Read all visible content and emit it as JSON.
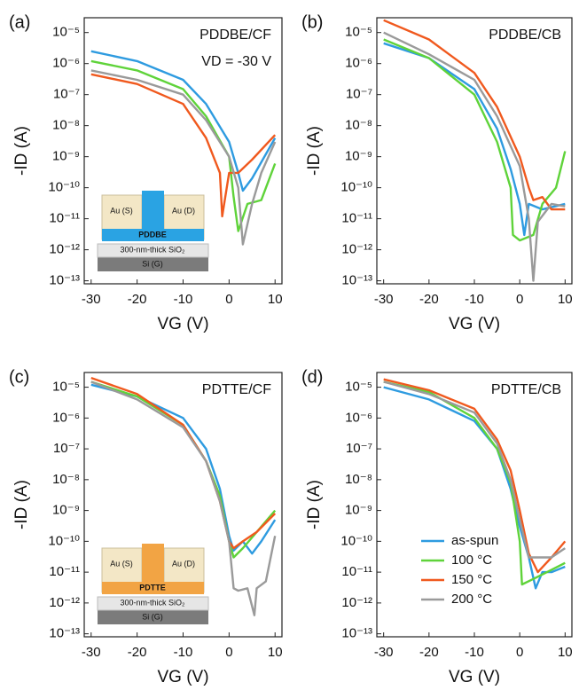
{
  "chart_data": [
    {
      "type": "line",
      "panel": "(a)",
      "title": "PDDBE/CF",
      "annotation": "VD = -30 V",
      "xlabel": "VG (V)",
      "ylabel": "-ID (A)",
      "ylog": true,
      "xlim": [
        -31.5,
        11.5
      ],
      "ylim": [
        8e-14,
        3e-05
      ],
      "xticks": [
        -30,
        -20,
        -10,
        0,
        10
      ],
      "yticks": [
        {
          "value": 1e-13,
          "label": "10⁻¹³"
        },
        {
          "value": 1e-12,
          "label": "10⁻¹²"
        },
        {
          "value": 1e-11,
          "label": "10⁻¹¹"
        },
        {
          "value": 1e-10,
          "label": "10⁻¹⁰"
        },
        {
          "value": 1e-09,
          "label": "10⁻⁹"
        },
        {
          "value": 1e-08,
          "label": "10⁻⁸"
        },
        {
          "value": 1e-07,
          "label": "10⁻⁷"
        },
        {
          "value": 1e-06,
          "label": "10⁻⁶"
        },
        {
          "value": 1e-05,
          "label": "10⁻⁵"
        }
      ],
      "inset": {
        "channel": "PDDBE",
        "channel_color": "#2aa3e3",
        "source": "Au (S)",
        "drain": "Au (D)",
        "dielectric": "300-nm-thick SiO₂",
        "gate": "Si (G)"
      },
      "series": [
        {
          "color": "#2e9be0",
          "x": [
            -30,
            -20,
            -10,
            -5,
            0,
            2,
            3,
            5,
            10
          ],
          "values": [
            2.5e-06,
            1.2e-06,
            3e-07,
            5e-08,
            3e-09,
            3e-10,
            8e-11,
            2e-10,
            4e-09
          ]
        },
        {
          "color": "#5fd33a",
          "x": [
            -30,
            -20,
            -10,
            -5,
            0,
            1,
            2,
            4,
            7,
            10
          ],
          "values": [
            1.2e-06,
            6e-07,
            1.5e-07,
            2e-08,
            1e-09,
            5e-11,
            4e-12,
            3e-11,
            4e-11,
            6e-10
          ]
        },
        {
          "color": "#f0591e",
          "x": [
            -30,
            -20,
            -10,
            -5,
            -2,
            -1.5,
            0,
            2,
            5,
            10
          ],
          "values": [
            4.5e-07,
            2.2e-07,
            5e-08,
            4e-09,
            3e-10,
            1.2e-11,
            3e-10,
            3e-10,
            8e-10,
            5e-09
          ]
        },
        {
          "color": "#9a9a9a",
          "x": [
            -30,
            -20,
            -10,
            -5,
            0,
            2,
            3,
            5,
            7,
            10
          ],
          "values": [
            6e-07,
            3e-07,
            1e-07,
            1.5e-08,
            1e-09,
            1e-10,
            1.5e-12,
            3e-11,
            3e-10,
            3e-09
          ]
        }
      ]
    },
    {
      "type": "line",
      "panel": "(b)",
      "title": "PDDBE/CB",
      "xlabel": "VG (V)",
      "ylabel": "-ID (A)",
      "ylog": true,
      "xlim": [
        -31.5,
        11.5
      ],
      "ylim": [
        8e-14,
        3e-05
      ],
      "xticks": [
        -30,
        -20,
        -10,
        0,
        10
      ],
      "yticks": [
        {
          "value": 1e-13,
          "label": "10⁻¹³"
        },
        {
          "value": 1e-12,
          "label": "10⁻¹²"
        },
        {
          "value": 1e-11,
          "label": "10⁻¹¹"
        },
        {
          "value": 1e-10,
          "label": "10⁻¹⁰"
        },
        {
          "value": 1e-09,
          "label": "10⁻⁹"
        },
        {
          "value": 1e-08,
          "label": "10⁻⁸"
        },
        {
          "value": 1e-07,
          "label": "10⁻⁷"
        },
        {
          "value": 1e-06,
          "label": "10⁻⁶"
        },
        {
          "value": 1e-05,
          "label": "10⁻⁵"
        }
      ],
      "series": [
        {
          "color": "#2e9be0",
          "x": [
            -30,
            -20,
            -10,
            -5,
            -2,
            0,
            1,
            2,
            5,
            10
          ],
          "values": [
            4.5e-06,
            1.5e-06,
            1.5e-07,
            8e-09,
            4e-10,
            3e-11,
            3e-12,
            3e-11,
            2e-11,
            3e-11
          ]
        },
        {
          "color": "#5fd33a",
          "x": [
            -30,
            -20,
            -10,
            -5,
            -2,
            -1.5,
            0,
            3,
            5,
            8,
            10
          ],
          "values": [
            6e-06,
            1.5e-06,
            1e-07,
            3e-09,
            1e-10,
            3e-12,
            2e-12,
            3e-12,
            3e-11,
            1e-10,
            1.5e-09
          ]
        },
        {
          "color": "#f0591e",
          "x": [
            -30,
            -20,
            -10,
            -5,
            0,
            2,
            3,
            5,
            7,
            10
          ],
          "values": [
            2.5e-05,
            6e-06,
            5e-07,
            4e-08,
            1e-09,
            1e-10,
            4e-11,
            5e-11,
            2e-11,
            2e-11
          ]
        },
        {
          "color": "#9a9a9a",
          "x": [
            -30,
            -20,
            -10,
            -5,
            0,
            2,
            3,
            4,
            7,
            10
          ],
          "values": [
            1e-05,
            2e-06,
            3e-07,
            2e-08,
            5e-10,
            1e-11,
            1e-13,
            8e-12,
            3e-11,
            2.5e-11
          ]
        }
      ]
    },
    {
      "type": "line",
      "panel": "(c)",
      "title": "PDTTE/CF",
      "xlabel": "VG (V)",
      "ylabel": "-ID (A)",
      "ylog": true,
      "xlim": [
        -31.5,
        11.5
      ],
      "ylim": [
        8e-14,
        3e-05
      ],
      "xticks": [
        -30,
        -20,
        -10,
        0,
        10
      ],
      "yticks": [
        {
          "value": 1e-13,
          "label": "10⁻¹³"
        },
        {
          "value": 1e-12,
          "label": "10⁻¹²"
        },
        {
          "value": 1e-11,
          "label": "10⁻¹¹"
        },
        {
          "value": 1e-10,
          "label": "10⁻¹⁰"
        },
        {
          "value": 1e-09,
          "label": "10⁻⁹"
        },
        {
          "value": 1e-08,
          "label": "10⁻⁸"
        },
        {
          "value": 1e-07,
          "label": "10⁻⁷"
        },
        {
          "value": 1e-06,
          "label": "10⁻⁶"
        },
        {
          "value": 1e-05,
          "label": "10⁻⁵"
        }
      ],
      "inset": {
        "channel": "PDTTE",
        "channel_color": "#f2a444",
        "source": "Au (S)",
        "drain": "Au (D)",
        "dielectric": "300-nm-thick SiO₂",
        "gate": "Si (G)"
      },
      "series": [
        {
          "color": "#2e9be0",
          "x": [
            -30,
            -20,
            -10,
            -5,
            -2,
            0,
            1,
            3,
            5,
            7,
            10
          ],
          "values": [
            1.2e-05,
            5e-06,
            1e-06,
            1e-07,
            5e-09,
            1.5e-10,
            5e-11,
            1e-10,
            4e-11,
            1e-10,
            5e-10
          ]
        },
        {
          "color": "#5fd33a",
          "x": [
            -30,
            -20,
            -10,
            -5,
            -2,
            0,
            1,
            3,
            6,
            10
          ],
          "values": [
            1.5e-05,
            5e-06,
            6e-07,
            4e-08,
            3e-09,
            1e-10,
            3e-11,
            6e-11,
            2e-10,
            1e-09
          ]
        },
        {
          "color": "#f0591e",
          "x": [
            -30,
            -20,
            -10,
            -5,
            -2,
            0,
            1,
            3,
            6,
            10
          ],
          "values": [
            2e-05,
            6e-06,
            6e-07,
            4e-08,
            2e-09,
            1e-10,
            6e-11,
            1e-10,
            2e-10,
            8e-10
          ]
        },
        {
          "color": "#9a9a9a",
          "x": [
            -30,
            -20,
            -10,
            -5,
            -2,
            0,
            1,
            2,
            4,
            5.5,
            6,
            8,
            10
          ],
          "values": [
            1.5e-05,
            4e-06,
            5e-07,
            4e-08,
            2e-09,
            1e-10,
            3e-12,
            2.5e-12,
            3e-12,
            4e-13,
            3e-12,
            5e-12,
            1.5e-10
          ]
        }
      ]
    },
    {
      "type": "line",
      "panel": "(d)",
      "title": "PDTTE/CB",
      "xlabel": "VG (V)",
      "ylabel": "-ID (A)",
      "ylog": true,
      "legend": "lower center",
      "xlim": [
        -31.5,
        11.5
      ],
      "ylim": [
        8e-14,
        3e-05
      ],
      "xticks": [
        -30,
        -20,
        -10,
        0,
        10
      ],
      "yticks": [
        {
          "value": 1e-13,
          "label": "10⁻¹³"
        },
        {
          "value": 1e-12,
          "label": "10⁻¹²"
        },
        {
          "value": 1e-11,
          "label": "10⁻¹¹"
        },
        {
          "value": 1e-10,
          "label": "10⁻¹⁰"
        },
        {
          "value": 1e-09,
          "label": "10⁻⁹"
        },
        {
          "value": 1e-08,
          "label": "10⁻⁸"
        },
        {
          "value": 1e-07,
          "label": "10⁻⁷"
        },
        {
          "value": 1e-06,
          "label": "10⁻⁶"
        },
        {
          "value": 1e-05,
          "label": "10⁻⁵"
        }
      ],
      "series": [
        {
          "name": "as-spun",
          "color": "#2e9be0",
          "x": [
            -30,
            -20,
            -10,
            -5,
            -2,
            0,
            2,
            3.5,
            5,
            7,
            10
          ],
          "values": [
            1e-05,
            4e-06,
            8e-07,
            1e-07,
            5e-09,
            3e-10,
            3e-11,
            3e-12,
            1e-11,
            1e-11,
            1.5e-11
          ]
        },
        {
          "name": "100 °C",
          "color": "#5fd33a",
          "x": [
            -30,
            -20,
            -10,
            -5,
            -2,
            0,
            0.5,
            3,
            6,
            10
          ],
          "values": [
            1.5e-05,
            7e-06,
            1e-06,
            1e-07,
            8e-09,
            1e-10,
            4e-12,
            6e-12,
            1e-11,
            2e-11
          ]
        },
        {
          "name": "150 °C",
          "color": "#f0591e",
          "x": [
            -30,
            -20,
            -10,
            -5,
            -2,
            0,
            2,
            4,
            7,
            10
          ],
          "values": [
            1.8e-05,
            8e-06,
            2e-06,
            2e-07,
            2e-08,
            1e-09,
            4e-11,
            1e-11,
            3e-11,
            1e-10
          ]
        },
        {
          "name": "200 °C",
          "color": "#9a9a9a",
          "x": [
            -30,
            -20,
            -10,
            -5,
            -2,
            0,
            2,
            4,
            7,
            10
          ],
          "values": [
            1.5e-05,
            6e-06,
            1.5e-06,
            1.5e-07,
            1e-08,
            5e-10,
            3e-11,
            3e-11,
            3e-11,
            6e-11
          ]
        }
      ]
    }
  ]
}
